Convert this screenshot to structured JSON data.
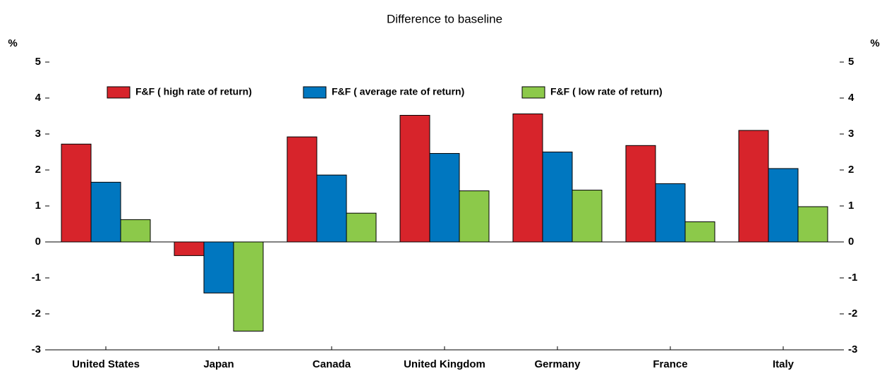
{
  "chart_data": {
    "type": "bar",
    "title": "Difference to baseline",
    "y_label": "%",
    "categories": [
      "United States",
      "Japan",
      "Canada",
      "United Kingdom",
      "Germany",
      "France",
      "Italy"
    ],
    "series": [
      {
        "name": "F&F ( high rate of return)",
        "color": "#d7242b",
        "values": [
          2.72,
          -0.38,
          2.92,
          3.52,
          3.56,
          2.68,
          3.1
        ]
      },
      {
        "name": "F&F ( average rate of return)",
        "color": "#0077c0",
        "values": [
          1.66,
          -1.42,
          1.86,
          2.46,
          2.5,
          1.62,
          2.04
        ]
      },
      {
        "name": "F&F ( low rate of return)",
        "color": "#8cc94a",
        "values": [
          0.62,
          -2.48,
          0.8,
          1.42,
          1.44,
          0.56,
          0.98
        ]
      }
    ],
    "ylim": [
      -3,
      5
    ],
    "yticks": [
      -3,
      -2,
      -1,
      0,
      1,
      2,
      3,
      4,
      5
    ],
    "grid": false
  }
}
